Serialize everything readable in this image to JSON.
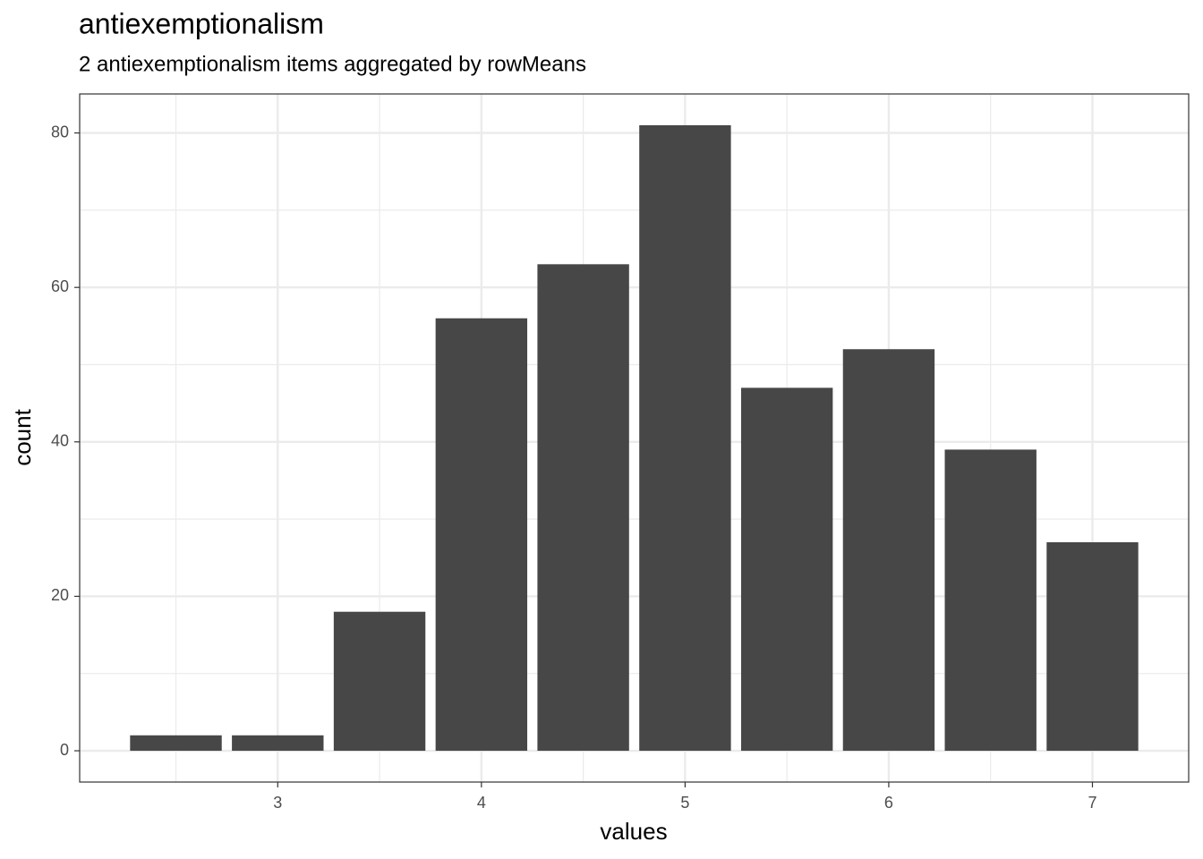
{
  "chart_data": {
    "type": "bar",
    "title": "antiexemptionalism",
    "subtitle": "2 antiexemptionalism items aggregated by rowMeans",
    "x_label": "values",
    "y_label": "count",
    "x": [
      2.5,
      3,
      3.5,
      4,
      4.5,
      5,
      5.5,
      6,
      6.5,
      7
    ],
    "values": [
      2,
      2,
      18,
      56,
      63,
      81,
      47,
      52,
      39,
      27
    ],
    "color": "#474747",
    "xlim": [
      2.0275,
      7.4725
    ],
    "xticks": [
      3,
      4,
      5,
      6,
      7
    ],
    "ylim": [
      -4.05,
      85.05
    ],
    "yticks": [
      0,
      20,
      40,
      60,
      80
    ],
    "grid": true
  }
}
